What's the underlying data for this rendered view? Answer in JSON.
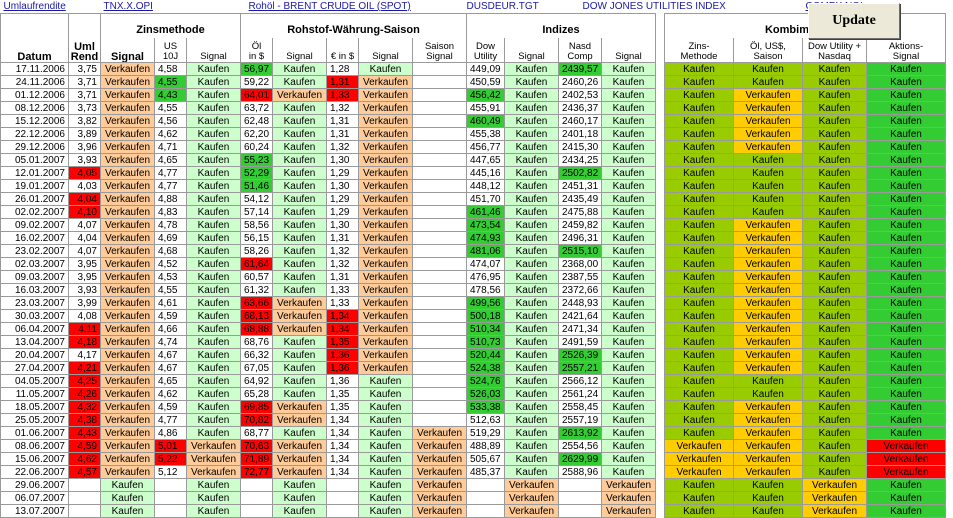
{
  "links": {
    "umlaufrendite": "Umlaufrendite",
    "tnx": "TNX.X.OPI",
    "brent": "Rohöl - BRENT CRUDE OIL (SPOT)",
    "usdeur": "DUSDEUR.TGT",
    "dowjones": "DOW JONES UTILITIES INDEX",
    "compx": "COMPX.NQI"
  },
  "update_button": "Update",
  "headers": {
    "groups": {
      "zins": "Zinsmethode",
      "rohstof": "Rohstof-Währung-Saison",
      "indizes": "Indizes",
      "kombi": "Kombimethode"
    },
    "cols": {
      "datum": "Datum",
      "uml_rend": [
        "Uml",
        "Rend"
      ],
      "signal1": "Signal",
      "us10j": [
        "US",
        "10J"
      ],
      "signal2": "Signal",
      "oel": [
        "Öl",
        "in $"
      ],
      "signal3": "Signal",
      "euro": "€ in $",
      "signal4": "Signal",
      "saison": [
        "Saison",
        "Signal"
      ],
      "dow": [
        "Dow",
        "Utility"
      ],
      "signal5": "Signal",
      "nasd": [
        "Nasd",
        "Comp"
      ],
      "signal6": "Signal",
      "k_zins": [
        "Zins-",
        "Methode"
      ],
      "k_oel": [
        "Öl, US$,",
        "Saison"
      ],
      "k_dow": [
        "Dow Utility +",
        "Nasdaq"
      ],
      "k_aktien": [
        "Aktions-",
        "Signal"
      ]
    }
  },
  "colors": {
    "light_green": "#ccffcc",
    "peach": "#ffcc99",
    "bright_green": "#33cc33",
    "red": "#ff0000",
    "olive_green": "#99cc00",
    "orange": "#ffcc00"
  },
  "rows": [
    {
      "d": "17.11.2006",
      "u": "3,75",
      "s1": "Verkaufen",
      "us": "4,58",
      "s2": "Kaufen",
      "oil": "56,97",
      "s3": "Kaufen",
      "eur": "1,28",
      "s4": "Kaufen",
      "sai": "",
      "dow": "449,09",
      "s5": "Kaufen",
      "nas": "2439,57",
      "s6": "Kaufen",
      "kz": "Kaufen",
      "ko": "Kaufen",
      "kd": "Kaufen",
      "ka": "Kaufen",
      "c": {
        "oil": "bg",
        "nas": "bg"
      }
    },
    {
      "d": "24.11.2006",
      "u": "3,71",
      "s1": "Verkaufen",
      "us": "4,55",
      "s2": "Kaufen",
      "oil": "59,22",
      "s3": "Kaufen",
      "eur": "1,31",
      "s4": "Verkaufen",
      "sai": "",
      "dow": "450,59",
      "s5": "Kaufen",
      "nas": "2460,26",
      "s6": "Kaufen",
      "kz": "Kaufen",
      "ko": "Kaufen",
      "kd": "Kaufen",
      "ka": "Kaufen",
      "c": {
        "us": "bg",
        "eur": "rd"
      }
    },
    {
      "d": "01.12.2006",
      "u": "3,71",
      "s1": "Verkaufen",
      "us": "4,43",
      "s2": "Kaufen",
      "oil": "64,01",
      "s3": "Verkaufen",
      "eur": "1,33",
      "s4": "Verkaufen",
      "sai": "",
      "dow": "456,42",
      "s5": "Kaufen",
      "nas": "2402,53",
      "s6": "Kaufen",
      "kz": "Kaufen",
      "ko": "Verkaufen",
      "kd": "Kaufen",
      "ka": "Kaufen",
      "c": {
        "us": "bg",
        "oil": "rd",
        "eur": "rd",
        "dow": "bg"
      }
    },
    {
      "d": "08.12.2006",
      "u": "3,73",
      "s1": "Verkaufen",
      "us": "4,55",
      "s2": "Kaufen",
      "oil": "63,72",
      "s3": "Kaufen",
      "eur": "1,32",
      "s4": "Verkaufen",
      "sai": "",
      "dow": "455,91",
      "s5": "Kaufen",
      "nas": "2436,37",
      "s6": "Kaufen",
      "kz": "Kaufen",
      "ko": "Verkaufen",
      "kd": "Kaufen",
      "ka": "Kaufen",
      "c": {}
    },
    {
      "d": "15.12.2006",
      "u": "3,82",
      "s1": "Verkaufen",
      "us": "4,56",
      "s2": "Kaufen",
      "oil": "62,48",
      "s3": "Kaufen",
      "eur": "1,31",
      "s4": "Verkaufen",
      "sai": "",
      "dow": "460,49",
      "s5": "Kaufen",
      "nas": "2460,17",
      "s6": "Kaufen",
      "kz": "Kaufen",
      "ko": "Verkaufen",
      "kd": "Kaufen",
      "ka": "Kaufen",
      "c": {
        "dow": "bg"
      }
    },
    {
      "d": "22.12.2006",
      "u": "3,89",
      "s1": "Verkaufen",
      "us": "4,62",
      "s2": "Kaufen",
      "oil": "62,20",
      "s3": "Kaufen",
      "eur": "1,31",
      "s4": "Verkaufen",
      "sai": "",
      "dow": "455,38",
      "s5": "Kaufen",
      "nas": "2401,18",
      "s6": "Kaufen",
      "kz": "Kaufen",
      "ko": "Verkaufen",
      "kd": "Kaufen",
      "ka": "Kaufen",
      "c": {}
    },
    {
      "d": "29.12.2006",
      "u": "3,96",
      "s1": "Verkaufen",
      "us": "4,71",
      "s2": "Kaufen",
      "oil": "60,24",
      "s3": "Kaufen",
      "eur": "1,32",
      "s4": "Verkaufen",
      "sai": "",
      "dow": "456,77",
      "s5": "Kaufen",
      "nas": "2415,30",
      "s6": "Kaufen",
      "kz": "Kaufen",
      "ko": "Verkaufen",
      "kd": "Kaufen",
      "ka": "Kaufen",
      "c": {}
    },
    {
      "d": "05.01.2007",
      "u": "3,93",
      "s1": "Verkaufen",
      "us": "4,65",
      "s2": "Kaufen",
      "oil": "55,23",
      "s3": "Kaufen",
      "eur": "1,30",
      "s4": "Verkaufen",
      "sai": "",
      "dow": "447,65",
      "s5": "Kaufen",
      "nas": "2434,25",
      "s6": "Kaufen",
      "kz": "Kaufen",
      "ko": "Kaufen",
      "kd": "Kaufen",
      "ka": "Kaufen",
      "c": {
        "oil": "bg"
      }
    },
    {
      "d": "12.01.2007",
      "u": "4,05",
      "s1": "Verkaufen",
      "us": "4,77",
      "s2": "Kaufen",
      "oil": "52,29",
      "s3": "Kaufen",
      "eur": "1,29",
      "s4": "Verkaufen",
      "sai": "",
      "dow": "445,16",
      "s5": "Kaufen",
      "nas": "2502,82",
      "s6": "Kaufen",
      "kz": "Kaufen",
      "ko": "Kaufen",
      "kd": "Kaufen",
      "ka": "Kaufen",
      "c": {
        "u": "rd",
        "oil": "bg",
        "nas": "bg"
      }
    },
    {
      "d": "19.01.2007",
      "u": "4,03",
      "s1": "Verkaufen",
      "us": "4,77",
      "s2": "Kaufen",
      "oil": "51,46",
      "s3": "Kaufen",
      "eur": "1,30",
      "s4": "Verkaufen",
      "sai": "",
      "dow": "448,12",
      "s5": "Kaufen",
      "nas": "2451,31",
      "s6": "Kaufen",
      "kz": "Kaufen",
      "ko": "Kaufen",
      "kd": "Kaufen",
      "ka": "Kaufen",
      "c": {
        "oil": "bg"
      }
    },
    {
      "d": "26.01.2007",
      "u": "4,04",
      "s1": "Verkaufen",
      "us": "4,88",
      "s2": "Kaufen",
      "oil": "54,12",
      "s3": "Kaufen",
      "eur": "1,29",
      "s4": "Verkaufen",
      "sai": "",
      "dow": "451,70",
      "s5": "Kaufen",
      "nas": "2435,49",
      "s6": "Kaufen",
      "kz": "Kaufen",
      "ko": "Kaufen",
      "kd": "Kaufen",
      "ka": "Kaufen",
      "c": {
        "u": "rd"
      }
    },
    {
      "d": "02.02.2007",
      "u": "4,10",
      "s1": "Verkaufen",
      "us": "4,83",
      "s2": "Kaufen",
      "oil": "57,14",
      "s3": "Kaufen",
      "eur": "1,29",
      "s4": "Verkaufen",
      "sai": "",
      "dow": "461,46",
      "s5": "Kaufen",
      "nas": "2475,88",
      "s6": "Kaufen",
      "kz": "Kaufen",
      "ko": "Kaufen",
      "kd": "Kaufen",
      "ka": "Kaufen",
      "c": {
        "u": "rd",
        "dow": "bg"
      }
    },
    {
      "d": "09.02.2007",
      "u": "4,07",
      "s1": "Verkaufen",
      "us": "4,78",
      "s2": "Kaufen",
      "oil": "58,56",
      "s3": "Kaufen",
      "eur": "1,30",
      "s4": "Verkaufen",
      "sai": "",
      "dow": "473,54",
      "s5": "Kaufen",
      "nas": "2459,82",
      "s6": "Kaufen",
      "kz": "Kaufen",
      "ko": "Verkaufen",
      "kd": "Kaufen",
      "ka": "Kaufen",
      "c": {
        "dow": "bg"
      }
    },
    {
      "d": "16.02.2007",
      "u": "4,04",
      "s1": "Verkaufen",
      "us": "4,69",
      "s2": "Kaufen",
      "oil": "56,15",
      "s3": "Kaufen",
      "eur": "1,31",
      "s4": "Verkaufen",
      "sai": "",
      "dow": "474,93",
      "s5": "Kaufen",
      "nas": "2496,31",
      "s6": "Kaufen",
      "kz": "Kaufen",
      "ko": "Verkaufen",
      "kd": "Kaufen",
      "ka": "Kaufen",
      "c": {
        "dow": "bg"
      }
    },
    {
      "d": "23.02.2007",
      "u": "4,07",
      "s1": "Verkaufen",
      "us": "4,68",
      "s2": "Kaufen",
      "oil": "58,26",
      "s3": "Kaufen",
      "eur": "1,32",
      "s4": "Verkaufen",
      "sai": "",
      "dow": "481,06",
      "s5": "Kaufen",
      "nas": "2515,10",
      "s6": "Kaufen",
      "kz": "Kaufen",
      "ko": "Verkaufen",
      "kd": "Kaufen",
      "ka": "Kaufen",
      "c": {
        "dow": "bg",
        "nas": "bg"
      }
    },
    {
      "d": "02.03.2007",
      "u": "3,95",
      "s1": "Verkaufen",
      "us": "4,52",
      "s2": "Kaufen",
      "oil": "61,64",
      "s3": "Kaufen",
      "eur": "1,32",
      "s4": "Verkaufen",
      "sai": "",
      "dow": "474,07",
      "s5": "Kaufen",
      "nas": "2368,00",
      "s6": "Kaufen",
      "kz": "Kaufen",
      "ko": "Verkaufen",
      "kd": "Kaufen",
      "ka": "Kaufen",
      "c": {
        "oil": "rd"
      }
    },
    {
      "d": "09.03.2007",
      "u": "3,95",
      "s1": "Verkaufen",
      "us": "4,53",
      "s2": "Kaufen",
      "oil": "60,57",
      "s3": "Kaufen",
      "eur": "1,31",
      "s4": "Verkaufen",
      "sai": "",
      "dow": "476,95",
      "s5": "Kaufen",
      "nas": "2387,55",
      "s6": "Kaufen",
      "kz": "Kaufen",
      "ko": "Verkaufen",
      "kd": "Kaufen",
      "ka": "Kaufen",
      "c": {}
    },
    {
      "d": "16.03.2007",
      "u": "3,93",
      "s1": "Verkaufen",
      "us": "4,55",
      "s2": "Kaufen",
      "oil": "61,32",
      "s3": "Kaufen",
      "eur": "1,33",
      "s4": "Verkaufen",
      "sai": "",
      "dow": "478,56",
      "s5": "Kaufen",
      "nas": "2372,66",
      "s6": "Kaufen",
      "kz": "Kaufen",
      "ko": "Verkaufen",
      "kd": "Kaufen",
      "ka": "Kaufen",
      "c": {}
    },
    {
      "d": "23.03.2007",
      "u": "3,99",
      "s1": "Verkaufen",
      "us": "4,61",
      "s2": "Kaufen",
      "oil": "63,66",
      "s3": "Verkaufen",
      "eur": "1,33",
      "s4": "Verkaufen",
      "sai": "",
      "dow": "499,56",
      "s5": "Kaufen",
      "nas": "2448,93",
      "s6": "Kaufen",
      "kz": "Kaufen",
      "ko": "Verkaufen",
      "kd": "Kaufen",
      "ka": "Kaufen",
      "c": {
        "oil": "rd",
        "dow": "bg"
      }
    },
    {
      "d": "30.03.2007",
      "u": "4,08",
      "s1": "Verkaufen",
      "us": "4,59",
      "s2": "Kaufen",
      "oil": "68,13",
      "s3": "Verkaufen",
      "eur": "1,34",
      "s4": "Verkaufen",
      "sai": "",
      "dow": "500,18",
      "s5": "Kaufen",
      "nas": "2421,64",
      "s6": "Kaufen",
      "kz": "Kaufen",
      "ko": "Verkaufen",
      "kd": "Kaufen",
      "ka": "Kaufen",
      "c": {
        "oil": "rd",
        "eur": "rd",
        "dow": "bg"
      }
    },
    {
      "d": "06.04.2007",
      "u": "4,11",
      "s1": "Verkaufen",
      "us": "4,66",
      "s2": "Kaufen",
      "oil": "68,88",
      "s3": "Verkaufen",
      "eur": "1,34",
      "s4": "Verkaufen",
      "sai": "",
      "dow": "510,34",
      "s5": "Kaufen",
      "nas": "2471,34",
      "s6": "Kaufen",
      "kz": "Kaufen",
      "ko": "Verkaufen",
      "kd": "Kaufen",
      "ka": "Kaufen",
      "c": {
        "u": "rd",
        "oil": "rd",
        "eur": "rd",
        "dow": "bg"
      }
    },
    {
      "d": "13.04.2007",
      "u": "4,18",
      "s1": "Verkaufen",
      "us": "4,74",
      "s2": "Kaufen",
      "oil": "68,76",
      "s3": "Kaufen",
      "eur": "1,35",
      "s4": "Verkaufen",
      "sai": "",
      "dow": "510,73",
      "s5": "Kaufen",
      "nas": "2491,59",
      "s6": "Kaufen",
      "kz": "Kaufen",
      "ko": "Verkaufen",
      "kd": "Kaufen",
      "ka": "Kaufen",
      "c": {
        "u": "rd",
        "eur": "rd",
        "dow": "bg"
      }
    },
    {
      "d": "20.04.2007",
      "u": "4,17",
      "s1": "Verkaufen",
      "us": "4,67",
      "s2": "Kaufen",
      "oil": "66,32",
      "s3": "Kaufen",
      "eur": "1,36",
      "s4": "Verkaufen",
      "sai": "",
      "dow": "520,44",
      "s5": "Kaufen",
      "nas": "2526,39",
      "s6": "Kaufen",
      "kz": "Kaufen",
      "ko": "Verkaufen",
      "kd": "Kaufen",
      "ka": "Kaufen",
      "c": {
        "eur": "rd",
        "dow": "bg",
        "nas": "bg"
      }
    },
    {
      "d": "27.04.2007",
      "u": "4,21",
      "s1": "Verkaufen",
      "us": "4,67",
      "s2": "Kaufen",
      "oil": "67,05",
      "s3": "Kaufen",
      "eur": "1,36",
      "s4": "Verkaufen",
      "sai": "",
      "dow": "524,38",
      "s5": "Kaufen",
      "nas": "2557,21",
      "s6": "Kaufen",
      "kz": "Kaufen",
      "ko": "Verkaufen",
      "kd": "Kaufen",
      "ka": "Kaufen",
      "c": {
        "u": "rd",
        "eur": "rd",
        "dow": "bg",
        "nas": "bg"
      }
    },
    {
      "d": "04.05.2007",
      "u": "4,25",
      "s1": "Verkaufen",
      "us": "4,65",
      "s2": "Kaufen",
      "oil": "64,92",
      "s3": "Kaufen",
      "eur": "1,36",
      "s4": "Kaufen",
      "sai": "",
      "dow": "524,76",
      "s5": "Kaufen",
      "nas": "2566,12",
      "s6": "Kaufen",
      "kz": "Kaufen",
      "ko": "Kaufen",
      "kd": "Kaufen",
      "ka": "Kaufen",
      "c": {
        "u": "rd",
        "dow": "bg"
      }
    },
    {
      "d": "11.05.2007",
      "u": "4,26",
      "s1": "Verkaufen",
      "us": "4,62",
      "s2": "Kaufen",
      "oil": "65,28",
      "s3": "Kaufen",
      "eur": "1,35",
      "s4": "Kaufen",
      "sai": "",
      "dow": "526,03",
      "s5": "Kaufen",
      "nas": "2561,24",
      "s6": "Kaufen",
      "kz": "Kaufen",
      "ko": "Kaufen",
      "kd": "Kaufen",
      "ka": "Kaufen",
      "c": {
        "u": "rd",
        "dow": "bg"
      }
    },
    {
      "d": "18.05.2007",
      "u": "4,32",
      "s1": "Verkaufen",
      "us": "4,59",
      "s2": "Kaufen",
      "oil": "69,85",
      "s3": "Verkaufen",
      "eur": "1,35",
      "s4": "Kaufen",
      "sai": "",
      "dow": "533,38",
      "s5": "Kaufen",
      "nas": "2558,45",
      "s6": "Kaufen",
      "kz": "Kaufen",
      "ko": "Verkaufen",
      "kd": "Kaufen",
      "ka": "Kaufen",
      "c": {
        "u": "rd",
        "oil": "rd",
        "dow": "bg"
      }
    },
    {
      "d": "25.05.2007",
      "u": "4,38",
      "s1": "Verkaufen",
      "us": "4,77",
      "s2": "Kaufen",
      "oil": "70,82",
      "s3": "Verkaufen",
      "eur": "1,34",
      "s4": "Kaufen",
      "sai": "",
      "dow": "512,63",
      "s5": "Kaufen",
      "nas": "2557,19",
      "s6": "Kaufen",
      "kz": "Kaufen",
      "ko": "Verkaufen",
      "kd": "Kaufen",
      "ka": "Kaufen",
      "c": {
        "u": "rd",
        "oil": "rd"
      }
    },
    {
      "d": "01.06.2007",
      "u": "4,43",
      "s1": "Verkaufen",
      "us": "4,86",
      "s2": "Kaufen",
      "oil": "68,77",
      "s3": "Kaufen",
      "eur": "1,34",
      "s4": "Kaufen",
      "sai": "Verkaufen",
      "dow": "519,29",
      "s5": "Kaufen",
      "nas": "2613,92",
      "s6": "Kaufen",
      "kz": "Kaufen",
      "ko": "Verkaufen",
      "kd": "Kaufen",
      "ka": "Kaufen",
      "c": {
        "u": "rd",
        "nas": "bg"
      }
    },
    {
      "d": "08.06.2007",
      "u": "4,59",
      "s1": "Verkaufen",
      "us": "5,01",
      "s2": "Verkaufen",
      "oil": "70,63",
      "s3": "Verkaufen",
      "eur": "1,34",
      "s4": "Kaufen",
      "sai": "Verkaufen",
      "dow": "488,89",
      "s5": "Kaufen",
      "nas": "2554,56",
      "s6": "Kaufen",
      "kz": "Verkaufen",
      "ko": "Verkaufen",
      "kd": "Kaufen",
      "ka": "Verkaufen",
      "c": {
        "u": "rd",
        "us": "rd",
        "oil": "rd"
      }
    },
    {
      "d": "15.06.2007",
      "u": "4,62",
      "s1": "Verkaufen",
      "us": "5,22",
      "s2": "Verkaufen",
      "oil": "71,89",
      "s3": "Verkaufen",
      "eur": "1,34",
      "s4": "Kaufen",
      "sai": "Verkaufen",
      "dow": "505,67",
      "s5": "Kaufen",
      "nas": "2629,99",
      "s6": "Kaufen",
      "kz": "Verkaufen",
      "ko": "Verkaufen",
      "kd": "Kaufen",
      "ka": "Verkaufen",
      "c": {
        "u": "rd",
        "us": "rd",
        "oil": "rd",
        "nas": "bg"
      }
    },
    {
      "d": "22.06.2007",
      "u": "4,57",
      "s1": "Verkaufen",
      "us": "5,12",
      "s2": "Verkaufen",
      "oil": "72,77",
      "s3": "Verkaufen",
      "eur": "1,34",
      "s4": "Kaufen",
      "sai": "Verkaufen",
      "dow": "485,37",
      "s5": "Kaufen",
      "nas": "2588,96",
      "s6": "Kaufen",
      "kz": "Verkaufen",
      "ko": "Verkaufen",
      "kd": "Kaufen",
      "ka": "Verkaufen",
      "c": {
        "u": "rd",
        "oil": "rd"
      }
    },
    {
      "d": "29.06.2007",
      "u": "",
      "s1": "Kaufen",
      "us": "",
      "s2": "Kaufen",
      "oil": "",
      "s3": "Kaufen",
      "eur": "",
      "s4": "Kaufen",
      "sai": "Verkaufen",
      "dow": "",
      "s5": "Verkaufen",
      "nas": "",
      "s6": "Verkaufen",
      "kz": "Kaufen",
      "ko": "Kaufen",
      "kd": "Verkaufen",
      "ka": "Kaufen",
      "c": {}
    },
    {
      "d": "06.07.2007",
      "u": "",
      "s1": "Kaufen",
      "us": "",
      "s2": "Kaufen",
      "oil": "",
      "s3": "Kaufen",
      "eur": "",
      "s4": "Kaufen",
      "sai": "Verkaufen",
      "dow": "",
      "s5": "Verkaufen",
      "nas": "",
      "s6": "Verkaufen",
      "kz": "Kaufen",
      "ko": "Kaufen",
      "kd": "Verkaufen",
      "ka": "Kaufen",
      "c": {}
    },
    {
      "d": "13.07.2007",
      "u": "",
      "s1": "Kaufen",
      "us": "",
      "s2": "Kaufen",
      "oil": "",
      "s3": "Kaufen",
      "eur": "",
      "s4": "Kaufen",
      "sai": "Verkaufen",
      "dow": "",
      "s5": "Verkaufen",
      "nas": "",
      "s6": "Verkaufen",
      "kz": "Kaufen",
      "ko": "Kaufen",
      "kd": "Verkaufen",
      "ka": "Kaufen",
      "c": {}
    }
  ]
}
